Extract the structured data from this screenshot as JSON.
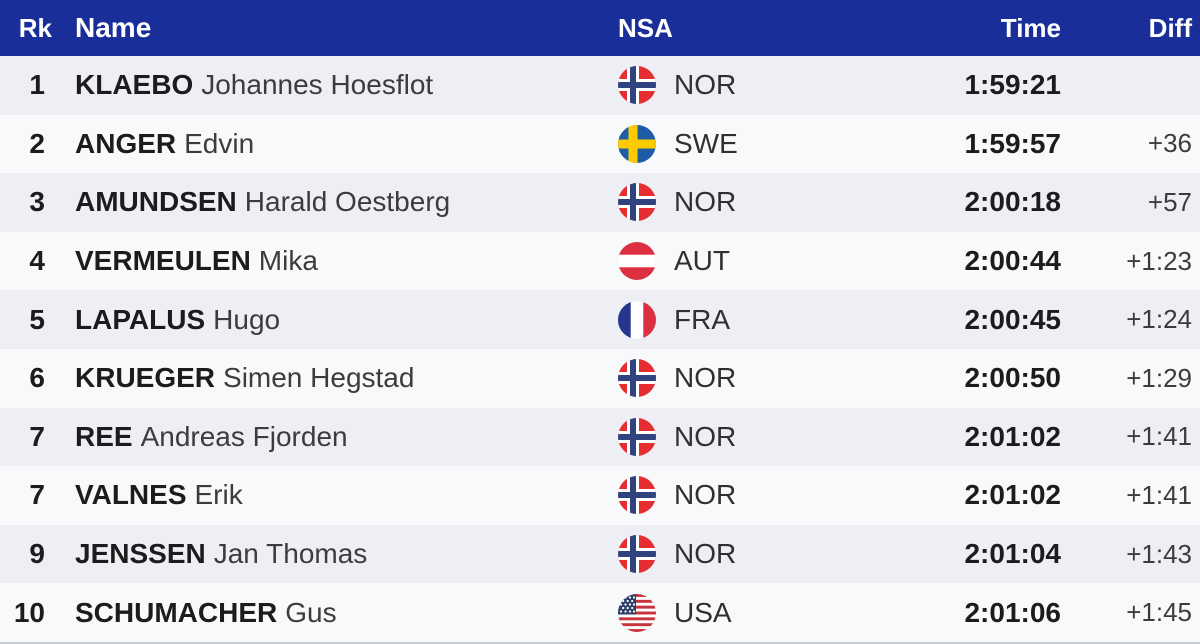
{
  "table": {
    "columns": {
      "rank": "Rk",
      "name": "Name",
      "nsa": "NSA",
      "time": "Time",
      "diff": "Diff"
    },
    "rows": [
      {
        "rank": "1",
        "surname": "KLAEBO",
        "given": "Johannes Hoesflot",
        "nsa": "NOR",
        "flag": "nor-flag",
        "time": "1:59:21",
        "diff": ""
      },
      {
        "rank": "2",
        "surname": "ANGER",
        "given": "Edvin",
        "nsa": "SWE",
        "flag": "swe-flag",
        "time": "1:59:57",
        "diff": "+36"
      },
      {
        "rank": "3",
        "surname": "AMUNDSEN",
        "given": "Harald Oestberg",
        "nsa": "NOR",
        "flag": "nor-flag",
        "time": "2:00:18",
        "diff": "+57"
      },
      {
        "rank": "4",
        "surname": "VERMEULEN",
        "given": "Mika",
        "nsa": "AUT",
        "flag": "aut-flag",
        "time": "2:00:44",
        "diff": "+1:23"
      },
      {
        "rank": "5",
        "surname": "LAPALUS",
        "given": "Hugo",
        "nsa": "FRA",
        "flag": "fra-flag",
        "time": "2:00:45",
        "diff": "+1:24"
      },
      {
        "rank": "6",
        "surname": "KRUEGER",
        "given": "Simen Hegstad",
        "nsa": "NOR",
        "flag": "nor-flag",
        "time": "2:00:50",
        "diff": "+1:29"
      },
      {
        "rank": "7",
        "surname": "REE",
        "given": "Andreas Fjorden",
        "nsa": "NOR",
        "flag": "nor-flag",
        "time": "2:01:02",
        "diff": "+1:41"
      },
      {
        "rank": "7",
        "surname": "VALNES",
        "given": "Erik",
        "nsa": "NOR",
        "flag": "nor-flag",
        "time": "2:01:02",
        "diff": "+1:41"
      },
      {
        "rank": "9",
        "surname": "JENSSEN",
        "given": "Jan Thomas",
        "nsa": "NOR",
        "flag": "nor-flag",
        "time": "2:01:04",
        "diff": "+1:43"
      },
      {
        "rank": "10",
        "surname": "SCHUMACHER",
        "given": "Gus",
        "nsa": "USA",
        "flag": "usa-flag",
        "time": "2:01:06",
        "diff": "+1:45"
      }
    ],
    "colors": {
      "header_bg": "#1a2e99",
      "header_text": "#ffffff",
      "row_odd_bg": "#edeff5",
      "row_even_bg": "#f8f9fb",
      "primary_text": "#1c1c1c",
      "secondary_text": "#3c3c3c",
      "bottom_border": "#cbced8"
    }
  }
}
